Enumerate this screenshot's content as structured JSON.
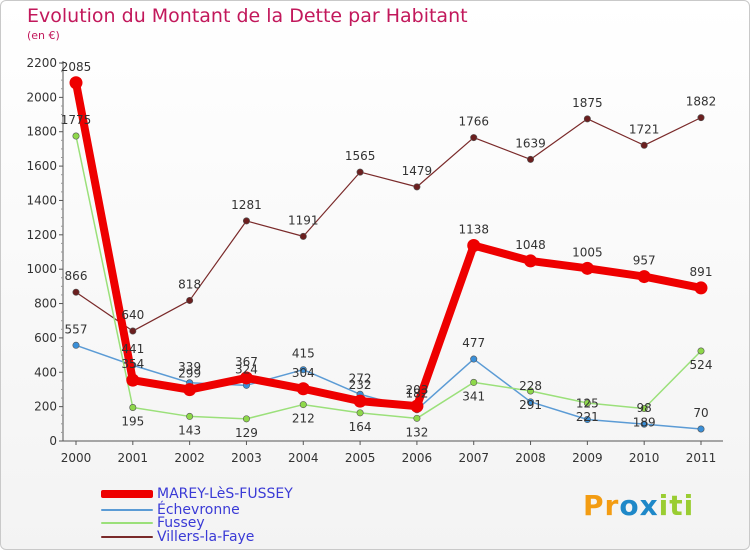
{
  "header": {
    "title": "Evolution du Montant de la Dette par Habitant",
    "unit": "(en €)"
  },
  "colors": {
    "title": "#c2185b",
    "legend_text": "#3a3ad6",
    "axis": "#555555",
    "grid": "#e0e0e0",
    "tick_text": "#333333"
  },
  "logo": {
    "text": "Proxiti",
    "letters": [
      {
        "char": "P",
        "color": "#f39c12"
      },
      {
        "char": "r",
        "color": "#f39c12"
      },
      {
        "char": "o",
        "color": "#1e88c8"
      },
      {
        "char": "x",
        "color": "#1e88c8"
      },
      {
        "char": "i",
        "color": "#9acd32"
      },
      {
        "char": "t",
        "color": "#9acd32"
      },
      {
        "char": "i",
        "color": "#9acd32"
      }
    ]
  },
  "chart_data": {
    "type": "line",
    "title": "Evolution du Montant de la Dette par Habitant",
    "subtitle": "(en €)",
    "xlabel": "",
    "ylabel": "",
    "x": [
      "2000",
      "2001",
      "2002",
      "2003",
      "2004",
      "2005",
      "2006",
      "2007",
      "2008",
      "2009",
      "2010",
      "2011"
    ],
    "ylim": [
      0,
      2200
    ],
    "yticks": [
      0,
      200,
      400,
      600,
      800,
      1000,
      1200,
      1400,
      1600,
      1800,
      2000,
      2200
    ],
    "grid": false,
    "legend_position": "bottom-left",
    "series": [
      {
        "name": "MAREY-LèS-FUSSEY",
        "color": "#ee0000",
        "marker": "#ee0000",
        "width": 8,
        "values": [
          2085,
          354,
          299,
          367,
          304,
          232,
          203,
          1138,
          1048,
          1005,
          957,
          891
        ]
      },
      {
        "name": "Échevronne",
        "color": "#5b9bd5",
        "marker": "#3a8fd8",
        "width": 1.5,
        "values": [
          557,
          441,
          339,
          324,
          415,
          272,
          182,
          477,
          228,
          125,
          98,
          70
        ]
      },
      {
        "name": "Fussey",
        "color": "#9be07a",
        "marker": "#8ed84a",
        "width": 1.5,
        "values": [
          1775,
          195,
          143,
          129,
          212,
          164,
          132,
          341,
          291,
          221,
          189,
          524
        ]
      },
      {
        "name": "Villers-la-Faye",
        "color": "#7a2a2a",
        "marker": "#6b1f1f",
        "width": 1.2,
        "values": [
          866,
          640,
          818,
          1281,
          1191,
          1565,
          1479,
          1766,
          1639,
          1875,
          1721,
          1882
        ]
      }
    ]
  }
}
